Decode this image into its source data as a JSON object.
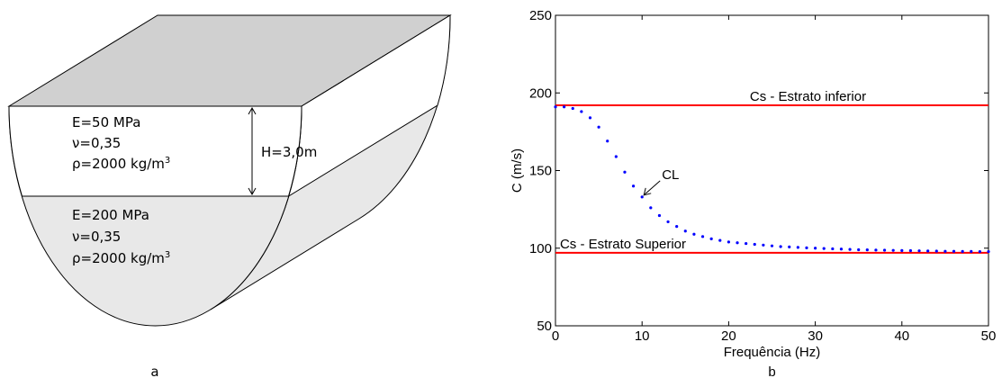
{
  "diagram": {
    "upper_layer": {
      "E": "E=50 MPa",
      "nu": "ν=0,35",
      "rho": "ρ=2000 kg/m",
      "rho_exp": "3"
    },
    "lower_layer": {
      "E": "E=200 MPa",
      "nu": "ν=0,35",
      "rho": "ρ=2000 kg/m",
      "rho_exp": "3"
    },
    "thickness": "H=3,0m",
    "label": "a"
  },
  "chart_data": {
    "type": "line",
    "panel_label": "b",
    "xlabel": "Frequência (Hz)",
    "ylabel": "C (m/s)",
    "xlim": [
      0,
      50
    ],
    "xticks": [
      0,
      10,
      20,
      30,
      40,
      50
    ],
    "ylim": [
      50,
      250
    ],
    "yticks": [
      50,
      100,
      150,
      200,
      250
    ],
    "series": [
      {
        "name": "Cs - Estrato inferior",
        "color": "#ff0000",
        "style": "line",
        "x": [
          0,
          50
        ],
        "values": [
          192,
          192
        ]
      },
      {
        "name": "Cs - Estrato Superior",
        "color": "#ff0000",
        "style": "line",
        "x": [
          0,
          50
        ],
        "values": [
          97,
          97
        ]
      },
      {
        "name": "CL",
        "color": "#0000ff",
        "style": "dots",
        "x": [
          0,
          1,
          2,
          3,
          4,
          5,
          6,
          7,
          8,
          9,
          10,
          11,
          12,
          13,
          14,
          15,
          16,
          17,
          18,
          19,
          20,
          21,
          22,
          23,
          24,
          25,
          26,
          27,
          28,
          29,
          30,
          31,
          32,
          33,
          34,
          35,
          36,
          37,
          38,
          39,
          40,
          41,
          42,
          43,
          44,
          45,
          46,
          47,
          48,
          49,
          50
        ],
        "values": [
          191,
          191,
          190,
          188,
          184,
          178,
          169,
          159,
          149,
          140,
          133,
          126,
          121,
          117,
          114,
          111,
          109,
          107.5,
          106,
          105,
          104,
          103.5,
          103,
          102.5,
          102,
          101.5,
          101,
          100.8,
          100.5,
          100.2,
          100,
          99.8,
          99.6,
          99.4,
          99.2,
          99,
          98.9,
          98.8,
          98.7,
          98.6,
          98.5,
          98.4,
          98.3,
          98.2,
          98.1,
          98,
          98,
          97.9,
          97.9,
          97.8,
          97.8
        ]
      }
    ]
  }
}
